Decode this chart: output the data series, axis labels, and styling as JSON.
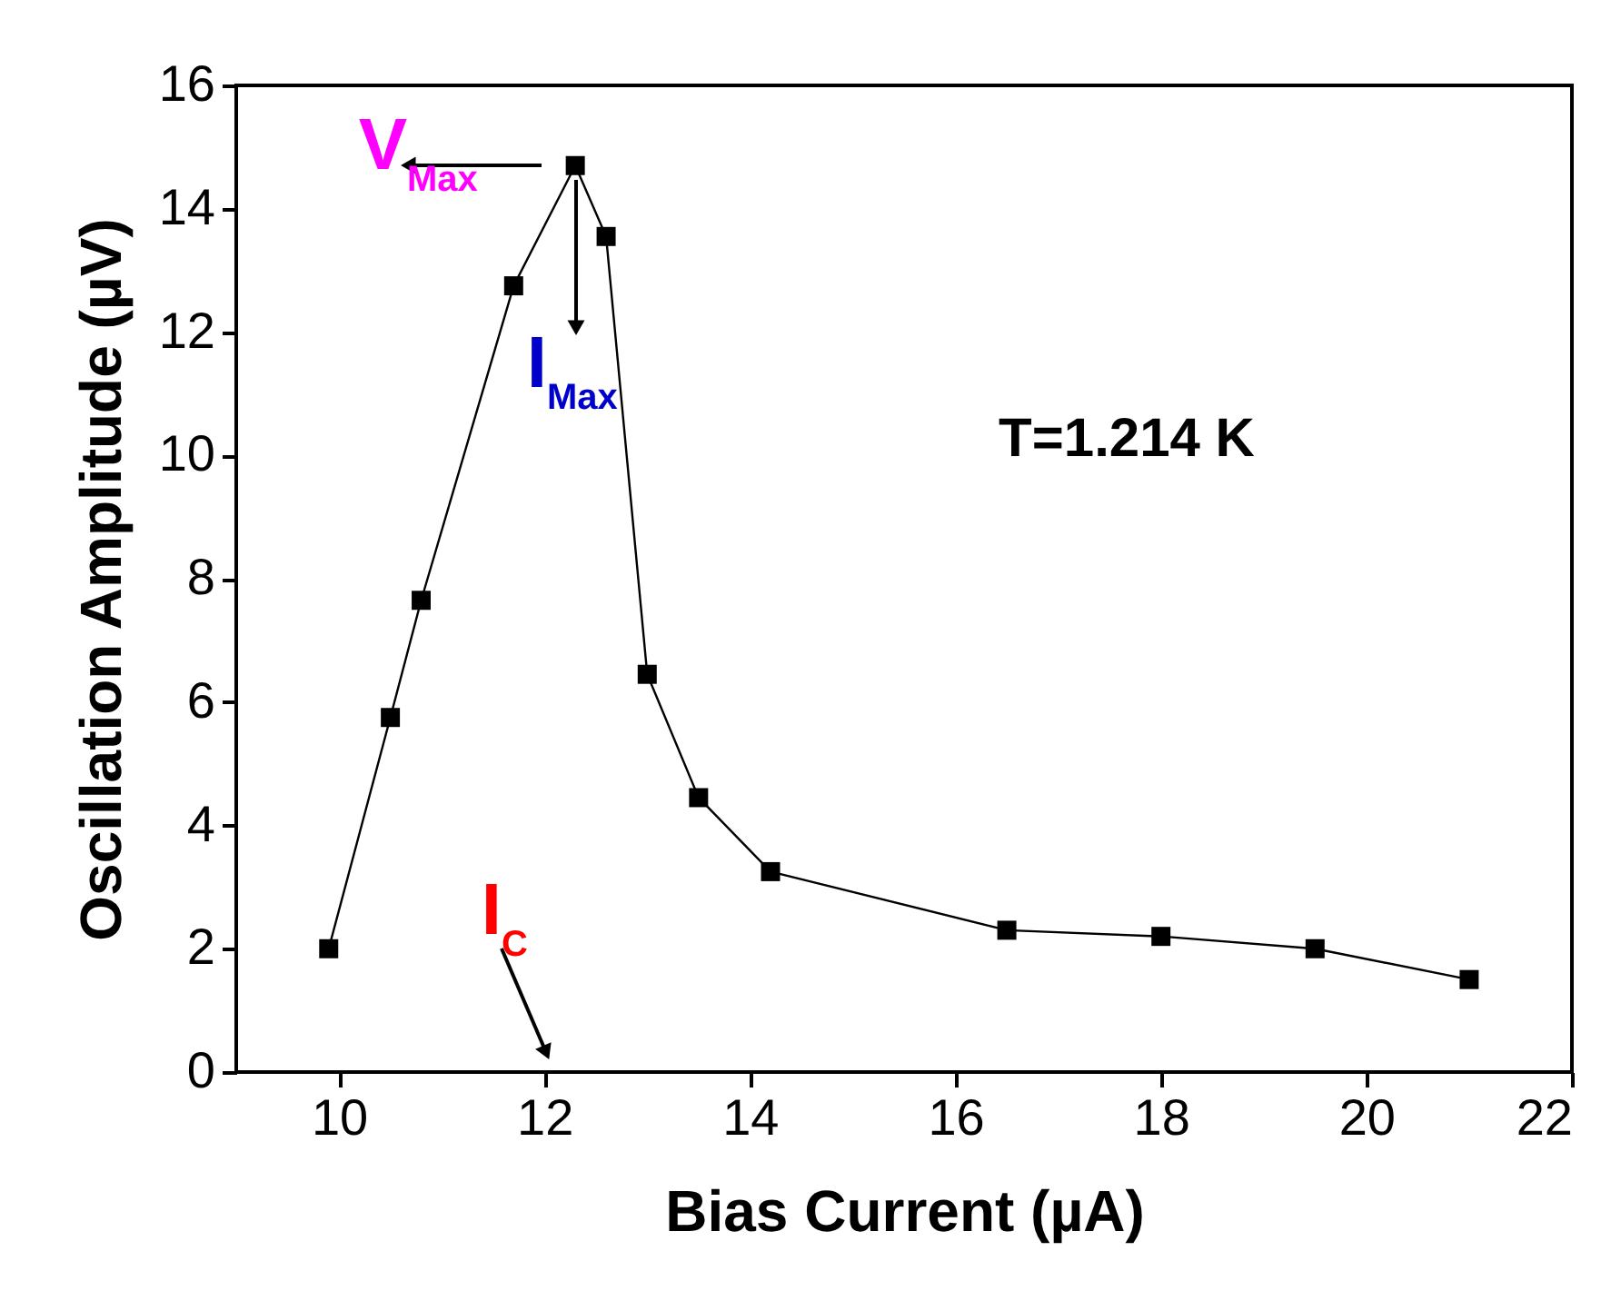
{
  "chart_data": {
    "type": "line",
    "xlabel": "Bias Current (µA)",
    "ylabel": "Oscillation Amplitude (µV)",
    "x": [
      9.9,
      10.5,
      10.8,
      11.7,
      12.3,
      12.6,
      13.0,
      13.5,
      14.2,
      16.5,
      18.0,
      19.5,
      21.0
    ],
    "series": [
      {
        "color": "#000000",
        "values": [
          2.0,
          5.75,
          7.65,
          12.75,
          14.7,
          13.55,
          6.45,
          4.45,
          3.25,
          2.3,
          2.2,
          2.0,
          1.5
        ]
      }
    ],
    "xlim": [
      9,
      22
    ],
    "xticks": [
      10,
      12,
      14,
      16,
      18,
      20,
      22
    ],
    "ylim": [
      0,
      16
    ],
    "yticks": [
      0,
      2,
      4,
      6,
      8,
      10,
      12,
      14,
      16
    ],
    "marker": "square",
    "grid": false,
    "annotations": [
      "V$_{Max}$",
      "I$_{Max}$",
      "I$_{C}$",
      "T=1.214 K"
    ]
  }
}
